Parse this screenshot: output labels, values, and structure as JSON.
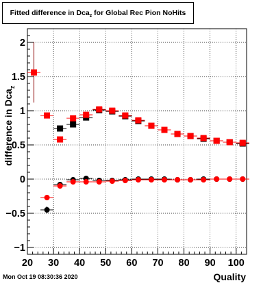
{
  "title_main": "Fitted difference in Dca",
  "title_sub": "z",
  "title_tail": " for Global Rec Pion NoHits",
  "timestamp": "Mon Oct 19 08:30:36 2020",
  "colors": {
    "red": "#ff0000",
    "black": "#000000",
    "dark_red": "#8b0000"
  },
  "chart_data": {
    "type": "scatter",
    "xlabel": "Quality",
    "ylabel": "difference in Dca",
    "ylabel_sub": "z",
    "xlim": [
      20,
      104
    ],
    "ylim": [
      -1.1,
      2.2
    ],
    "xticks": [
      20,
      30,
      40,
      50,
      60,
      70,
      80,
      90,
      100
    ],
    "xtick_labels": [
      "20",
      "30",
      "40",
      "50",
      "60",
      "70",
      "80",
      "90",
      "100"
    ],
    "yticks": [
      -1,
      -0.5,
      0,
      0.5,
      1,
      1.5,
      2
    ],
    "ytick_labels": [
      "−1",
      "−0.5",
      "0",
      "0.5",
      "1",
      "1.5",
      "2"
    ],
    "grid": true,
    "series": [
      {
        "marker": "square",
        "color": "#000000",
        "x": [
          32.5,
          37.5,
          42.5,
          47.5,
          52.5,
          57.5,
          62.5,
          67.5,
          72.5,
          77.5,
          82.5,
          87.5,
          92.5,
          97.5,
          102.5
        ],
        "y": [
          0.74,
          0.8,
          0.9,
          1.01,
          0.99,
          0.92,
          0.85,
          0.78,
          0.72,
          0.66,
          0.63,
          0.59,
          0.56,
          0.54,
          0.52
        ]
      },
      {
        "marker": "square",
        "color": "#ff0000",
        "x": [
          22.5,
          27.5,
          32.5,
          37.5,
          42.5,
          47.5,
          52.5,
          57.5,
          62.5,
          67.5,
          72.5,
          77.5,
          82.5,
          87.5,
          92.5,
          97.5,
          102.5
        ],
        "y": [
          1.56,
          0.93,
          0.58,
          0.89,
          0.94,
          1.02,
          1.0,
          0.93,
          0.86,
          0.78,
          0.72,
          0.66,
          0.63,
          0.6,
          0.56,
          0.54,
          0.53
        ],
        "err": [
          0.44,
          0,
          0,
          0,
          0,
          0,
          0,
          0,
          0,
          0,
          0,
          0,
          0,
          0,
          0,
          0,
          0
        ]
      },
      {
        "marker": "circle",
        "color": "#000000",
        "x": [
          27.5,
          32.5,
          37.5,
          42.5,
          47.5,
          52.5,
          57.5,
          62.5,
          67.5,
          72.5,
          77.5,
          82.5,
          87.5,
          92.5,
          97.5,
          102.5
        ],
        "y": [
          -0.45,
          -0.08,
          -0.01,
          0.01,
          -0.02,
          -0.02,
          -0.01,
          0.0,
          0.0,
          0.0,
          -0.01,
          -0.01,
          0.0,
          0.0,
          0.0,
          0.0
        ],
        "err": [
          0.05,
          0.02,
          0,
          0,
          0,
          0,
          0,
          0,
          0,
          0,
          0,
          0,
          0,
          0,
          0,
          0
        ]
      },
      {
        "marker": "circle",
        "color": "#ff0000",
        "x": [
          27.5,
          32.5,
          37.5,
          42.5,
          47.5,
          52.5,
          57.5,
          62.5,
          67.5,
          72.5,
          77.5,
          82.5,
          87.5,
          92.5,
          97.5,
          102.5
        ],
        "y": [
          -0.27,
          -0.1,
          -0.04,
          -0.04,
          -0.04,
          -0.03,
          -0.02,
          -0.01,
          -0.01,
          -0.01,
          -0.01,
          -0.01,
          -0.01,
          0.0,
          0.0,
          0.0
        ],
        "err": [
          0.03,
          0.02,
          0,
          0,
          0,
          0,
          0,
          0,
          0,
          0,
          0,
          0,
          0,
          0,
          0,
          0
        ]
      }
    ]
  }
}
